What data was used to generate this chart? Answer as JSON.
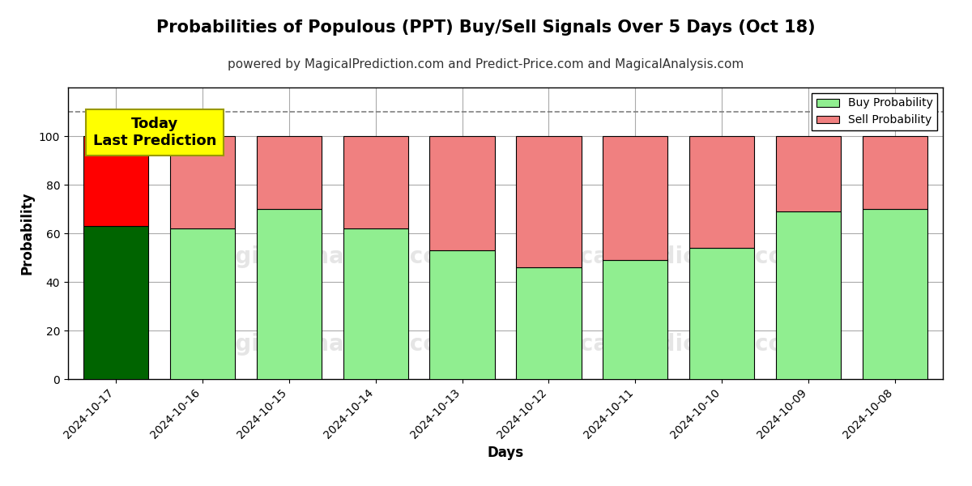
{
  "title": "Probabilities of Populous (PPT) Buy/Sell Signals Over 5 Days (Oct 18)",
  "subtitle": "powered by MagicalPrediction.com and Predict-Price.com and MagicalAnalysis.com",
  "xlabel": "Days",
  "ylabel": "Probability",
  "dates": [
    "2024-10-17",
    "2024-10-16",
    "2024-10-15",
    "2024-10-14",
    "2024-10-13",
    "2024-10-12",
    "2024-10-11",
    "2024-10-10",
    "2024-10-09",
    "2024-10-08"
  ],
  "buy_values": [
    63,
    62,
    70,
    62,
    53,
    46,
    49,
    54,
    69,
    70
  ],
  "sell_values": [
    37,
    38,
    30,
    38,
    47,
    54,
    51,
    46,
    31,
    30
  ],
  "today_buy_color": "#006400",
  "today_sell_color": "#ff0000",
  "other_buy_color": "#90ee90",
  "other_sell_color": "#f08080",
  "bar_edge_color": "#000000",
  "ylim": [
    0,
    120
  ],
  "yticks": [
    0,
    20,
    40,
    60,
    80,
    100
  ],
  "dashed_line_y": 110,
  "today_annotation_text": "Today\nLast Prediction",
  "today_annotation_bg": "#ffff00",
  "legend_buy_label": "Buy Probability",
  "legend_sell_label": "Sell Probability",
  "grid_color": "#aaaaaa",
  "title_fontsize": 15,
  "subtitle_fontsize": 11,
  "axis_label_fontsize": 12,
  "tick_fontsize": 10,
  "bar_width": 0.75
}
